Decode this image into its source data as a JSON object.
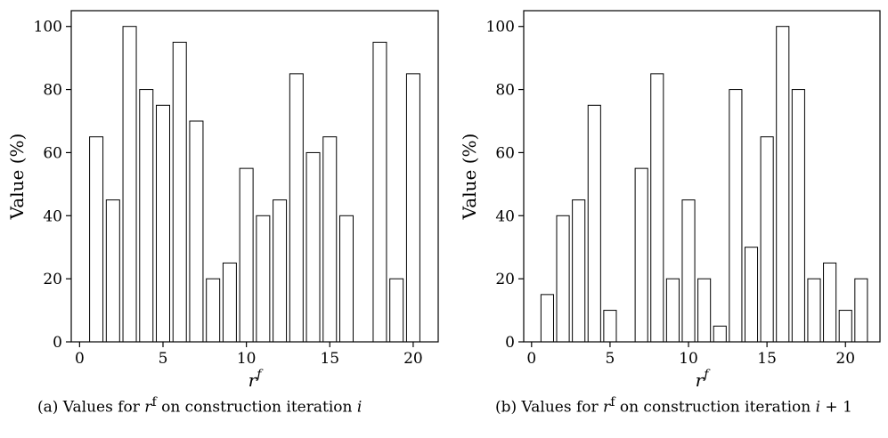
{
  "chart_data": [
    {
      "type": "bar",
      "id": "a",
      "x": [
        1,
        2,
        3,
        4,
        5,
        6,
        7,
        8,
        9,
        10,
        11,
        12,
        13,
        14,
        15,
        16,
        18,
        19,
        20
      ],
      "values": [
        65,
        45,
        100,
        80,
        75,
        95,
        70,
        20,
        25,
        55,
        40,
        45,
        85,
        60,
        65,
        40,
        95,
        20,
        85
      ],
      "xlabel": "r^f",
      "ylabel": "Value (%)",
      "xlim": [
        -0.5,
        21.5
      ],
      "ylim": [
        0,
        105
      ],
      "xticks": [
        0,
        5,
        10,
        15,
        20
      ],
      "yticks": [
        0,
        20,
        40,
        60,
        80,
        100
      ],
      "bar_fill": "#ffffff",
      "bar_stroke": "#000000",
      "grid": false,
      "caption": "(a) Values for r^f on construction iteration i"
    },
    {
      "type": "bar",
      "id": "b",
      "x": [
        1,
        2,
        3,
        4,
        5,
        7,
        8,
        9,
        10,
        11,
        12,
        13,
        14,
        15,
        16,
        17,
        18,
        19,
        20,
        21
      ],
      "values": [
        15,
        40,
        45,
        75,
        10,
        55,
        85,
        20,
        45,
        20,
        5,
        80,
        30,
        65,
        100,
        80,
        20,
        25,
        10,
        20
      ],
      "xlabel": "r^f",
      "ylabel": "Value (%)",
      "xlim": [
        -0.5,
        22.2
      ],
      "ylim": [
        0,
        105
      ],
      "xticks": [
        0,
        5,
        10,
        15,
        20
      ],
      "yticks": [
        0,
        20,
        40,
        60,
        80,
        100
      ],
      "bar_fill": "#ffffff",
      "bar_stroke": "#000000",
      "grid": false,
      "caption": "(b) Values for r^f on construction iteration i + 1"
    }
  ],
  "captions": {
    "a": {
      "prefix": "(a) Values for ",
      "sym": "r",
      "sup": "f",
      "mid": " on construction iteration ",
      "iter": "i",
      "suffix": ""
    },
    "b": {
      "prefix": "(b) Values for ",
      "sym": "r",
      "sup": "f",
      "mid": " on construction iteration ",
      "iter": "i",
      "suffix": " + 1"
    }
  }
}
